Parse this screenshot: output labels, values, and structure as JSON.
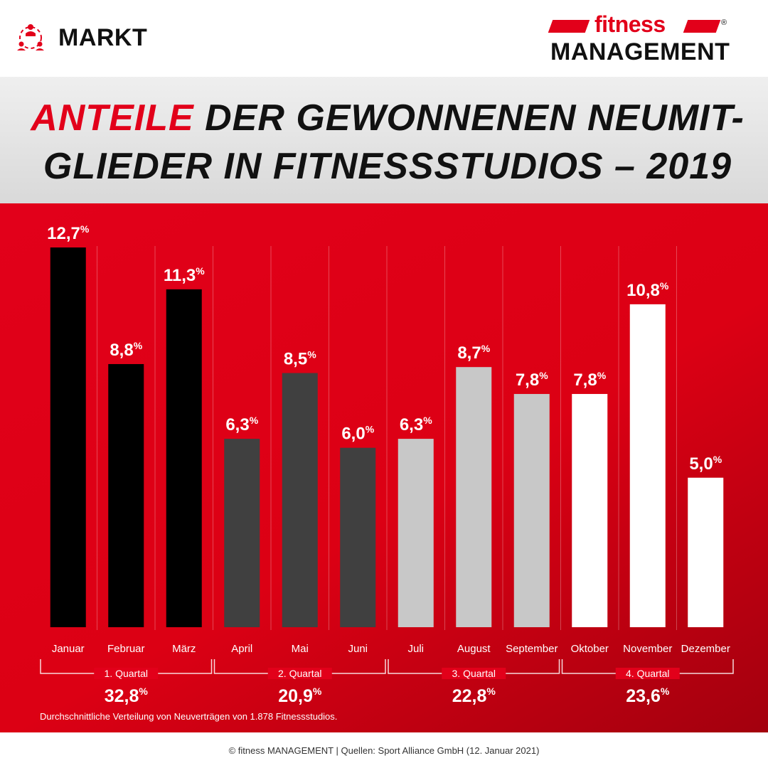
{
  "header": {
    "section_icon": "people-network-icon",
    "section_label": "MARKT",
    "logo_top": "fitness",
    "logo_bottom": "MANAGEMENT",
    "logo_reg": "®"
  },
  "title": {
    "accent": "ANTEILE",
    "rest": " DER GEWONNENEN NEUMIT-GLIEDER IN FITNESSSTUDIOS – 2019"
  },
  "chart_data": {
    "type": "bar",
    "categories": [
      "Januar",
      "Februar",
      "März",
      "April",
      "Mai",
      "Juni",
      "Juli",
      "August",
      "September",
      "Oktober",
      "November",
      "Dezember"
    ],
    "values": [
      12.7,
      8.8,
      11.3,
      6.3,
      8.5,
      6.0,
      6.3,
      8.7,
      7.8,
      7.8,
      10.8,
      5.0
    ],
    "value_labels": [
      "12,7",
      "8,8",
      "11,3",
      "6,3",
      "8,5",
      "6,0",
      "6,3",
      "8,7",
      "7,8",
      "7,8",
      "10,8",
      "5,0"
    ],
    "unit": "%",
    "ylim": [
      0,
      12.7
    ],
    "grid": false,
    "colors": {
      "q1": "#000000",
      "q2": "#404040",
      "q3": "#c8c8c8",
      "q4": "#ffffff",
      "background": "#e2001a",
      "label": "#ffffff"
    },
    "quarters": [
      {
        "label": "1. Quartal",
        "total": "32,8",
        "months": [
          0,
          1,
          2
        ],
        "color": "#000000"
      },
      {
        "label": "2. Quartal",
        "total": "20,9",
        "months": [
          3,
          4,
          5
        ],
        "color": "#404040"
      },
      {
        "label": "3. Quartal",
        "total": "22,8",
        "months": [
          6,
          7,
          8
        ],
        "color": "#c8c8c8"
      },
      {
        "label": "4. Quartal",
        "total": "23,6",
        "months": [
          9,
          10,
          11
        ],
        "color": "#ffffff"
      }
    ]
  },
  "footnote": "Durchschnittliche Verteilung von Neuverträgen von 1.878 Fitnessstudios.",
  "footer": "© fitness MANAGEMENT | Quellen: Sport Alliance GmbH (12. Januar 2021)"
}
